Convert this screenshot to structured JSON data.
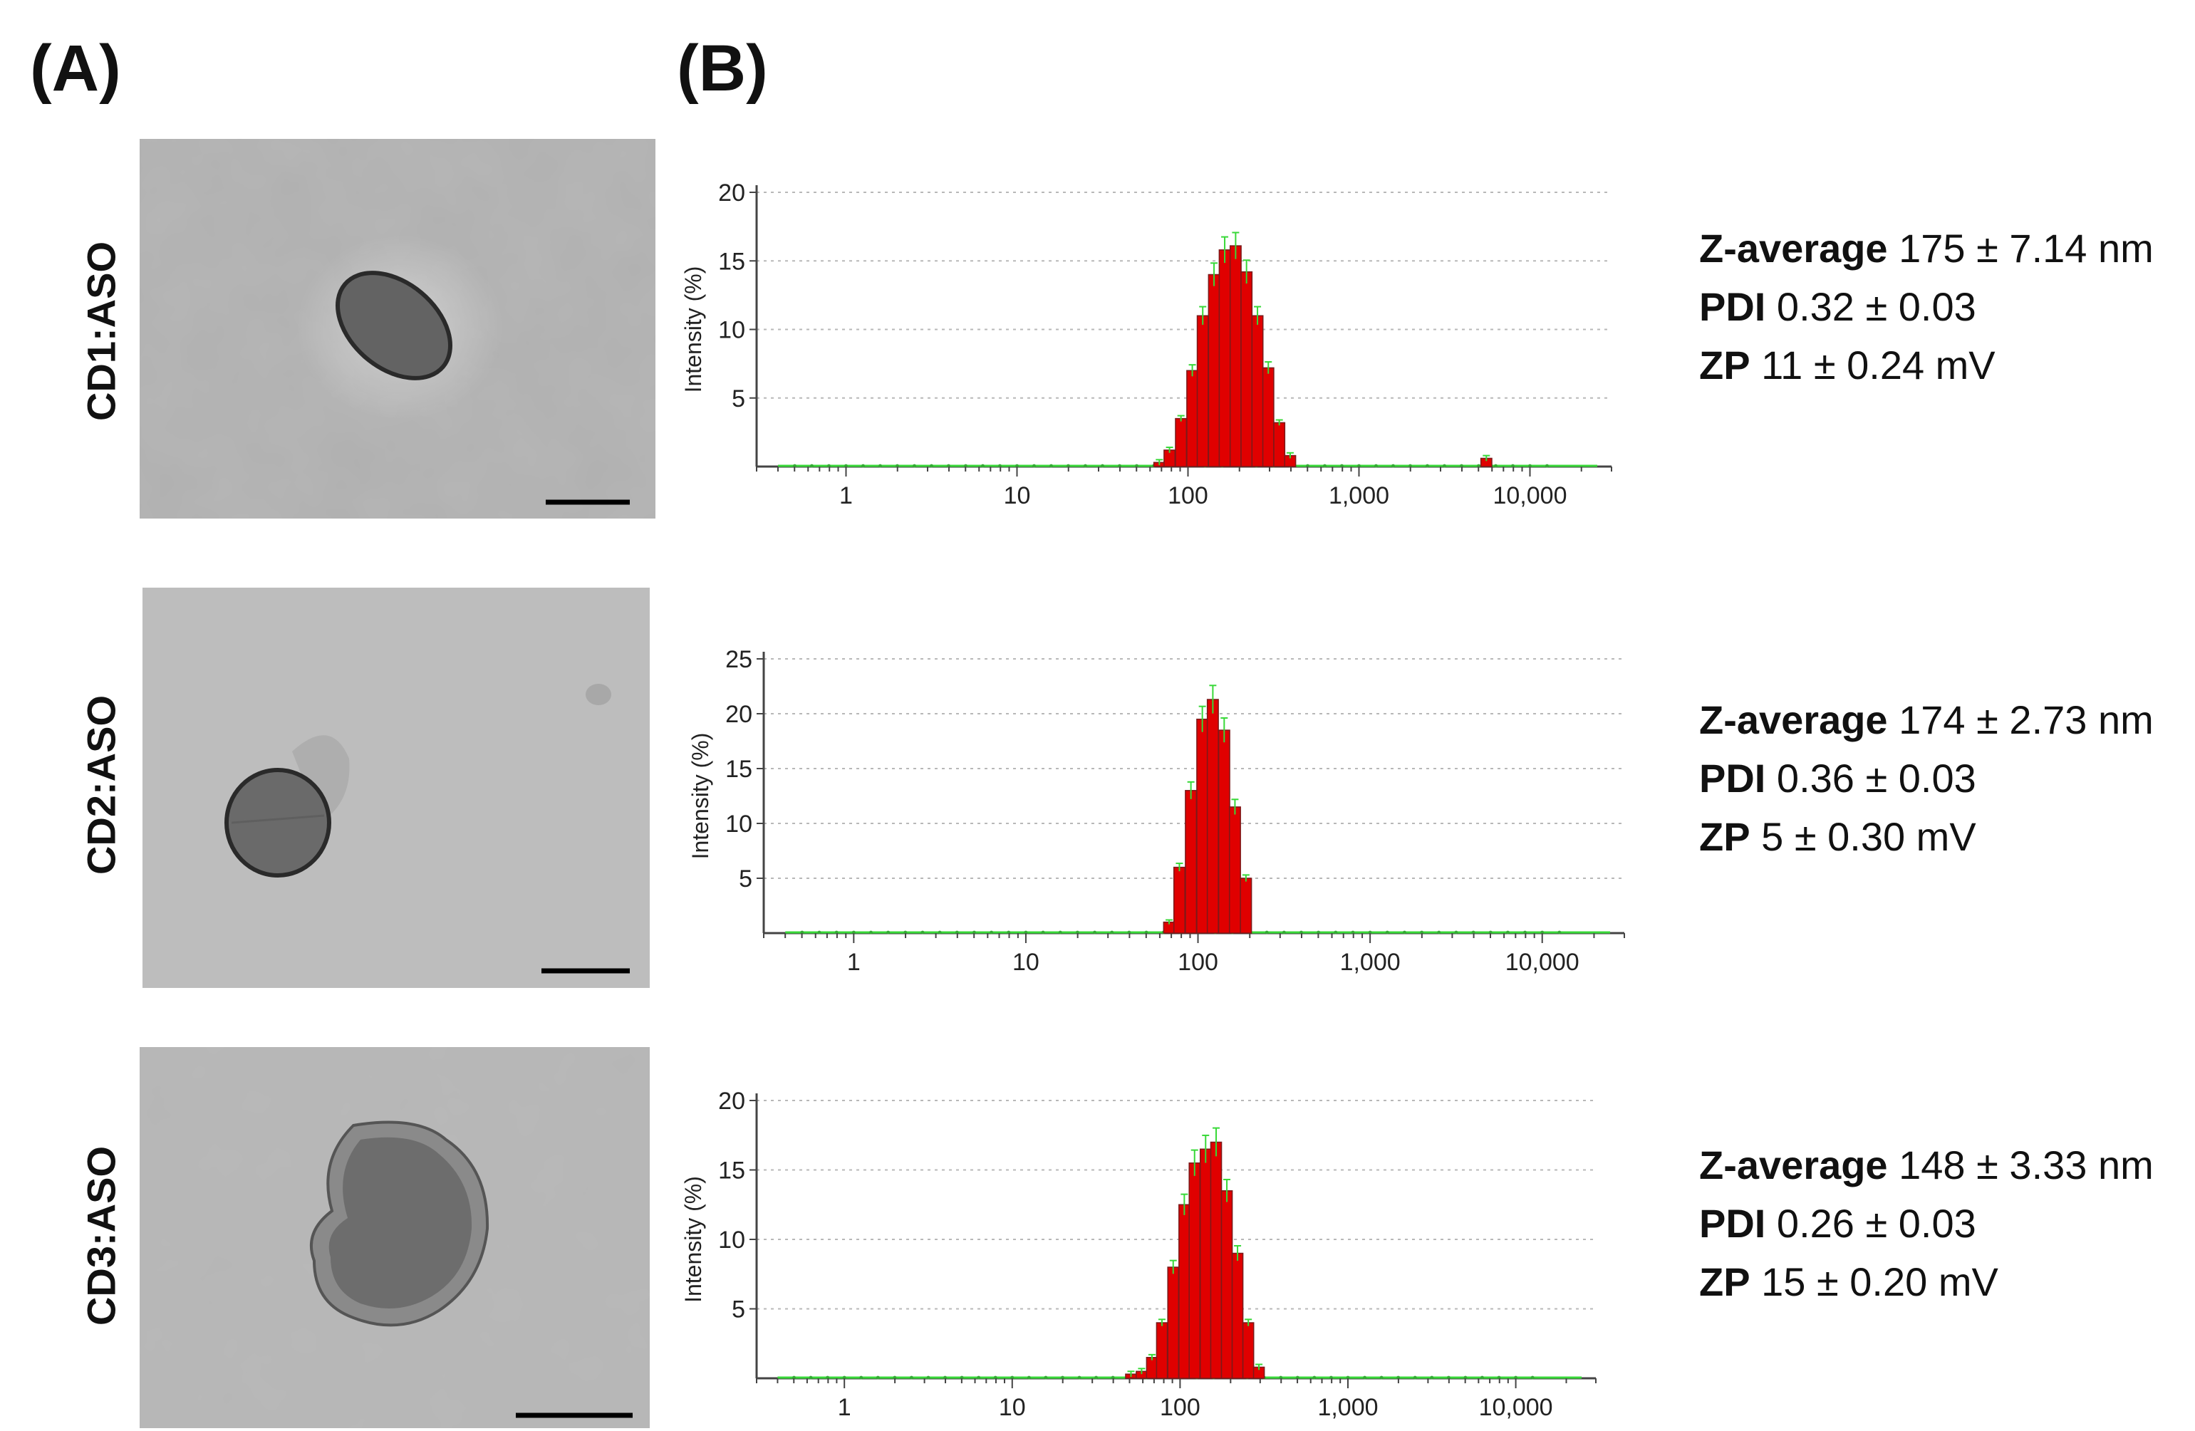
{
  "panel_labels": {
    "a": "(A)",
    "b": "(B)"
  },
  "rows": [
    {
      "label": "CD1:ASO",
      "stats": [
        {
          "key": "Z-average",
          "value": "175 ± 7.14 nm"
        },
        {
          "key": "PDI",
          "value": "0.32 ± 0.03"
        },
        {
          "key": "ZP",
          "value": "11 ± 0.24 mV"
        }
      ]
    },
    {
      "label": "CD2:ASO",
      "stats": [
        {
          "key": "Z-average",
          "value": "174 ± 2.73 nm"
        },
        {
          "key": "PDI",
          "value": "0.36 ± 0.03"
        },
        {
          "key": "ZP",
          "value": "5 ± 0.30 mV"
        }
      ]
    },
    {
      "label": "CD3:ASO",
      "stats": [
        {
          "key": "Z-average",
          "value": "148 ± 3.33 nm"
        },
        {
          "key": "PDI",
          "value": "0.26 ± 0.03"
        },
        {
          "key": "ZP",
          "value": "15 ± 0.20 mV"
        }
      ]
    }
  ],
  "colors": {
    "bar": "#e00000",
    "bar_edge": "#7a1a1a",
    "baseline": "#38d838",
    "grid": "#b8b8b8"
  },
  "chart_data": [
    {
      "type": "bar",
      "ylabel": "Intensity (%)",
      "xscale": "log",
      "xlim": [
        0.3,
        30000
      ],
      "ylim": [
        0,
        20
      ],
      "yticks": [
        5,
        10,
        15,
        20
      ],
      "xtick_values": [
        1,
        10,
        100,
        1000,
        10000
      ],
      "xtick_labels": [
        "1",
        "10",
        "100",
        "1,000",
        "10,000"
      ],
      "grid": true,
      "series": [
        {
          "x": [
            68,
            78,
            91,
            106,
            122,
            142,
            164,
            190,
            220,
            255,
            295,
            342,
            396,
            5560
          ],
          "values": [
            0.3,
            1.2,
            3.5,
            7.0,
            11.0,
            14.0,
            15.8,
            16.1,
            14.2,
            11.0,
            7.2,
            3.2,
            0.8,
            0.6
          ]
        }
      ]
    },
    {
      "type": "bar",
      "ylabel": "Intensity (%)",
      "xscale": "log",
      "xlim": [
        0.3,
        30000
      ],
      "ylim": [
        0,
        25
      ],
      "yticks": [
        5,
        10,
        15,
        20,
        25
      ],
      "xtick_values": [
        1,
        10,
        100,
        1000,
        10000
      ],
      "xtick_labels": [
        "1",
        "10",
        "100",
        "1,000",
        "10,000"
      ],
      "grid": true,
      "series": [
        {
          "x": [
            68,
            78,
            91,
            106,
            122,
            142,
            164,
            190
          ],
          "values": [
            1.0,
            6.0,
            13.0,
            19.5,
            21.3,
            18.5,
            11.5,
            5.0
          ]
        }
      ]
    },
    {
      "type": "bar",
      "ylabel": "Intensity (%)",
      "xscale": "log",
      "xlim": [
        0.3,
        30000
      ],
      "ylim": [
        0,
        20
      ],
      "yticks": [
        5,
        10,
        15,
        20
      ],
      "xtick_values": [
        1,
        10,
        100,
        1000,
        10000
      ],
      "xtick_labels": [
        "1",
        "10",
        "100",
        "1,000",
        "10,000"
      ],
      "grid": true,
      "series": [
        {
          "x": [
            51,
            59,
            68,
            78,
            91,
            106,
            122,
            142,
            164,
            190,
            220,
            255,
            295
          ],
          "values": [
            0.3,
            0.5,
            1.5,
            4.0,
            8.0,
            12.5,
            15.5,
            16.5,
            17.0,
            13.5,
            9.0,
            4.0,
            0.8
          ]
        }
      ]
    }
  ]
}
